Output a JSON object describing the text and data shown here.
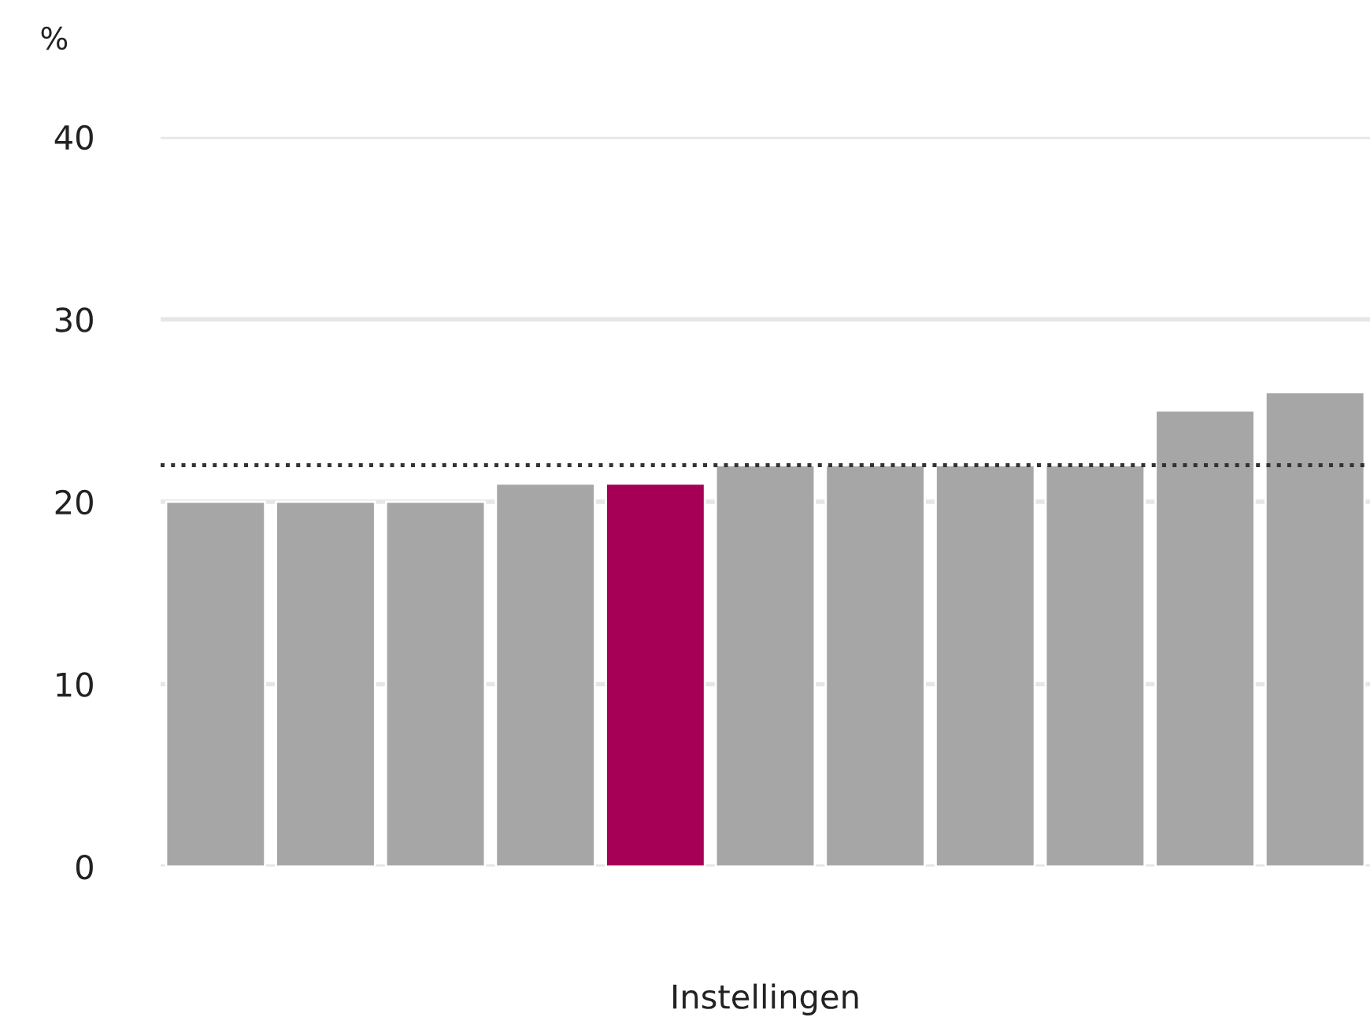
{
  "chart_data": {
    "type": "bar",
    "xlabel": "Instellingen",
    "ylabel": "%",
    "categories": [
      null,
      null,
      null,
      null,
      null,
      null,
      null,
      null,
      null,
      null,
      null
    ],
    "values": [
      20,
      20,
      20,
      21,
      21,
      22,
      22,
      22,
      22,
      25,
      26
    ],
    "colors": [
      "#a6a6a6",
      "#a6a6a6",
      "#a6a6a6",
      "#a6a6a6",
      "#a50055",
      "#a6a6a6",
      "#a6a6a6",
      "#a6a6a6",
      "#a6a6a6",
      "#a6a6a6",
      "#a6a6a6"
    ],
    "ylim": [
      0,
      40
    ],
    "yticks": [
      0,
      10,
      20,
      30,
      40
    ],
    "grid": "y",
    "ref_lines": [
      {
        "axis": "y",
        "value": 22,
        "color": "#333333",
        "line_style": "dotted"
      }
    ]
  }
}
